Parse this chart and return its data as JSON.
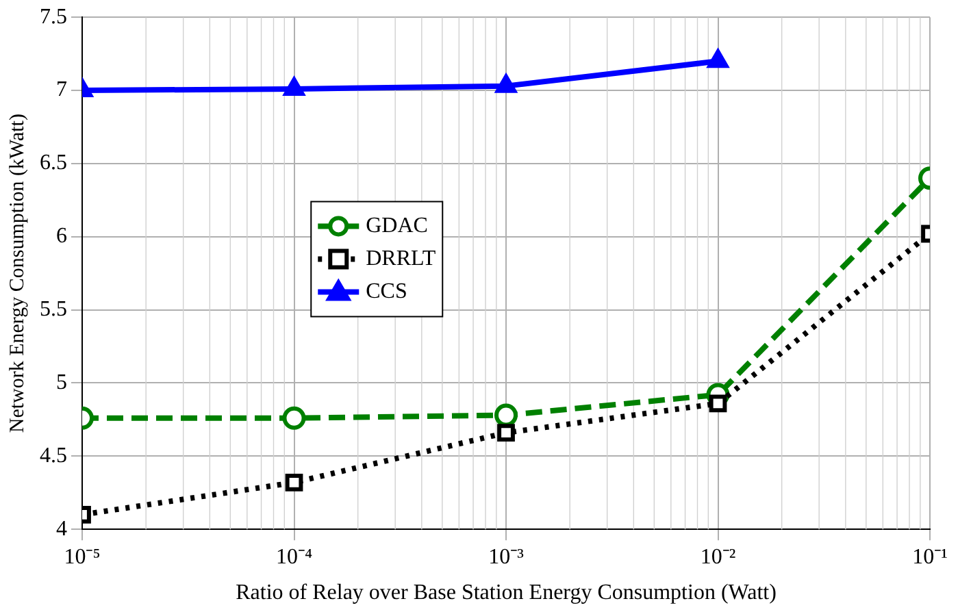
{
  "chart_data": {
    "type": "line",
    "xlabel": "Ratio of Relay over Base Station Energy Consumption (Watt)",
    "ylabel": "Network Energy Consumption (kWatt)",
    "x": [
      1e-05,
      0.0001,
      0.001,
      0.01,
      0.1
    ],
    "series": [
      {
        "name": "GDAC",
        "color": "#008000",
        "values": [
          4.76,
          4.76,
          4.78,
          4.92,
          6.4
        ],
        "marker": "circle",
        "line_style": "dashed"
      },
      {
        "name": "DRRLT",
        "color": "#000000",
        "values": [
          4.1,
          4.32,
          4.66,
          4.86,
          6.02
        ],
        "marker": "square",
        "line_style": "dotted"
      },
      {
        "name": "CCS",
        "color": "#0000ff",
        "values": [
          7.0,
          7.01,
          7.03,
          7.2,
          null
        ],
        "marker": "triangle",
        "line_style": "solid"
      }
    ],
    "log": "x",
    "xlim": [
      1e-05,
      0.1
    ],
    "xticks": [
      {
        "value": 1e-05,
        "label": "10⁻⁵"
      },
      {
        "value": 0.0001,
        "label": "10⁻⁴"
      },
      {
        "value": 0.001,
        "label": "10⁻³"
      },
      {
        "value": 0.01,
        "label": "10⁻²"
      },
      {
        "value": 0.1,
        "label": "10⁻¹"
      }
    ],
    "ylim": [
      4,
      7.5
    ],
    "yticks": [
      4,
      4.5,
      5,
      5.5,
      6,
      6.5,
      7,
      7.5
    ],
    "grid": true,
    "legend": "center"
  }
}
